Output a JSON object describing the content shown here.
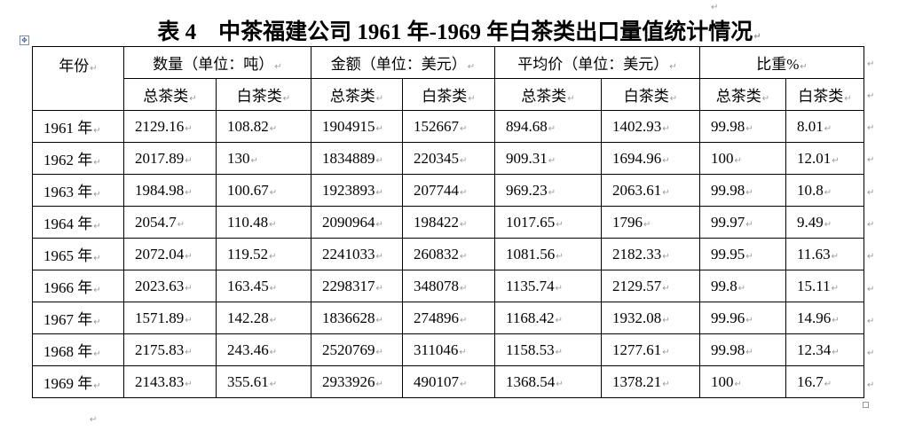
{
  "document": {
    "title": "表 4　中茶福建公司 1961 年-1969 年白茶类出口量值统计情况",
    "table": {
      "header_groups": [
        "年份",
        "数量（单位：吨）",
        "金额（单位：美元）",
        "平均价（单位：美元）",
        "比重%"
      ],
      "sub_headers": [
        "总茶类",
        "白茶类",
        "总茶类",
        "白茶类",
        "总茶类",
        "白茶类",
        "总茶类",
        "白茶类"
      ],
      "rows": [
        [
          "1961 年",
          "2129.16",
          "108.82",
          "1904915",
          "152667",
          "894.68",
          "1402.93",
          "99.98",
          "8.01"
        ],
        [
          "1962 年",
          "2017.89",
          "130",
          "1834889",
          "220345",
          "909.31",
          "1694.96",
          "100",
          "12.01"
        ],
        [
          "1963 年",
          "1984.98",
          "100.67",
          "1923893",
          "207744",
          "969.23",
          "2063.61",
          "99.98",
          "10.8"
        ],
        [
          "1964 年",
          "2054.7",
          "110.48",
          "2090964",
          "198422",
          "1017.65",
          "1796",
          "99.97",
          "9.49"
        ],
        [
          "1965 年",
          "2072.04",
          "119.52",
          "2241033",
          "260832",
          "1081.56",
          "2182.33",
          "99.95",
          "11.63"
        ],
        [
          "1966 年",
          "2023.63",
          "163.45",
          "2298317",
          "348078",
          "1135.74",
          "2129.57",
          "99.8",
          "15.11"
        ],
        [
          "1967 年",
          "1571.89",
          "142.28",
          "1836628",
          "274896",
          "1168.42",
          "1932.08",
          "99.96",
          "14.96"
        ],
        [
          "1968 年",
          "2175.83",
          "243.46",
          "2520769",
          "311046",
          "1158.53",
          "1277.61",
          "99.98",
          "12.34"
        ],
        [
          "1969 年",
          "2143.83",
          "355.61",
          "2933926",
          "490107",
          "1368.54",
          "1378.21",
          "100",
          "16.7"
        ]
      ]
    }
  }
}
